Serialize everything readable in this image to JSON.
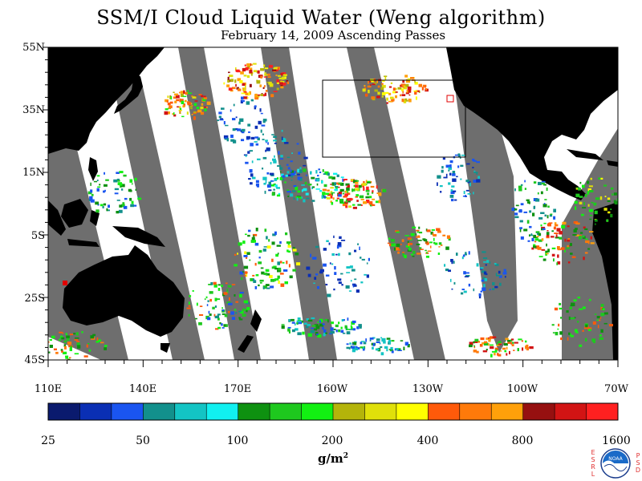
{
  "chart_data": {
    "type": "heatmap",
    "title": "SSM/I Cloud Liquid Water (Weng algorithm)",
    "subtitle": "February 14, 2009  Ascending Passes",
    "units_base": "g/m",
    "units_exp": "2",
    "lat_ticks": [
      "55N",
      "35N",
      "15N",
      "5S",
      "25S",
      "45S"
    ],
    "lon_ticks": [
      "110E",
      "140E",
      "170E",
      "160W",
      "130W",
      "100W",
      "70W"
    ],
    "colorbar_ticks": [
      "25",
      "50",
      "100",
      "200",
      "400",
      "800",
      "1600"
    ],
    "colorbar_colors": [
      "#0a1a6e",
      "#0a2fb4",
      "#1a55f0",
      "#12908c",
      "#13c4c4",
      "#11f0f0",
      "#0e9110",
      "#1ec81e",
      "#12f012",
      "#b4b40a",
      "#e0e00a",
      "#ffff00",
      "#ff5a0a",
      "#ff7a0a",
      "#ffa00a",
      "#961010",
      "#d21414",
      "#ff2020"
    ],
    "land_color": "#000000",
    "no_data_color": "#6e6e6e",
    "ocean_clear_color": "#ffffff"
  },
  "logo": {
    "left_letters": [
      "E",
      "S",
      "R",
      "L"
    ],
    "right_letters": [
      "P",
      "S",
      "D"
    ],
    "text": "NOAA"
  }
}
